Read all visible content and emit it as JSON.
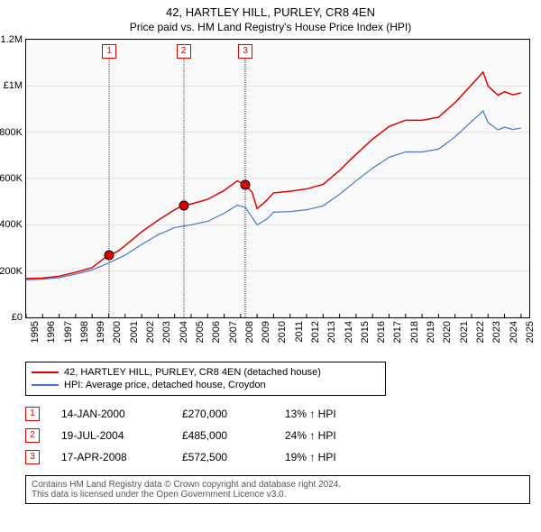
{
  "titles": {
    "line1": "42, HARTLEY HILL, PURLEY, CR8 4EN",
    "line2": "Price paid vs. HM Land Registry's House Price Index (HPI)"
  },
  "chart": {
    "type": "line",
    "background_color": "#fafafa",
    "border_color": "#000000",
    "grid_color": "#e0e0e0",
    "x": {
      "min": 1995,
      "max": 2025.5,
      "ticks": [
        1995,
        1996,
        1997,
        1998,
        1999,
        2000,
        2001,
        2002,
        2003,
        2004,
        2005,
        2006,
        2007,
        2008,
        2009,
        2010,
        2011,
        2012,
        2013,
        2014,
        2015,
        2016,
        2017,
        2018,
        2019,
        2020,
        2021,
        2022,
        2023,
        2024,
        2025
      ]
    },
    "y": {
      "min": 0,
      "max": 1200000,
      "ticks": [
        0,
        200000,
        400000,
        600000,
        800000,
        1000000,
        1200000
      ],
      "tick_labels": [
        "£0",
        "£200K",
        "£400K",
        "£600K",
        "£800K",
        "£1M",
        "£1.2M"
      ]
    },
    "series": [
      {
        "name": "42, HARTLEY HILL, PURLEY, CR8 4EN (detached house)",
        "color": "#e00000",
        "width": 1.5,
        "points": [
          [
            1995,
            168000
          ],
          [
            1996,
            170000
          ],
          [
            1997,
            178000
          ],
          [
            1998,
            195000
          ],
          [
            1999,
            215000
          ],
          [
            2000,
            270000
          ],
          [
            2000.5,
            283000
          ],
          [
            2001,
            310000
          ],
          [
            2002,
            370000
          ],
          [
            2003,
            420000
          ],
          [
            2004,
            465000
          ],
          [
            2004.54,
            485000
          ],
          [
            2005,
            490000
          ],
          [
            2006,
            510000
          ],
          [
            2007,
            548000
          ],
          [
            2007.8,
            590000
          ],
          [
            2008.29,
            572500
          ],
          [
            2008.7,
            540000
          ],
          [
            2009,
            470000
          ],
          [
            2009.5,
            500000
          ],
          [
            2010,
            538000
          ],
          [
            2011,
            545000
          ],
          [
            2012,
            555000
          ],
          [
            2013,
            575000
          ],
          [
            2014,
            635000
          ],
          [
            2015,
            705000
          ],
          [
            2016,
            770000
          ],
          [
            2017,
            825000
          ],
          [
            2018,
            852000
          ],
          [
            2019,
            852000
          ],
          [
            2020,
            865000
          ],
          [
            2021,
            928000
          ],
          [
            2022,
            1005000
          ],
          [
            2022.7,
            1060000
          ],
          [
            2023,
            1000000
          ],
          [
            2023.6,
            960000
          ],
          [
            2024,
            975000
          ],
          [
            2024.5,
            962000
          ],
          [
            2025,
            970000
          ]
        ]
      },
      {
        "name": "HPI: Average price, detached house, Croydon",
        "color": "#4a74c9",
        "width": 1.2,
        "points": [
          [
            1995,
            162000
          ],
          [
            1996,
            165000
          ],
          [
            1997,
            172000
          ],
          [
            1998,
            187000
          ],
          [
            1999,
            205000
          ],
          [
            2000,
            235000
          ],
          [
            2001,
            269000
          ],
          [
            2002,
            315000
          ],
          [
            2003,
            357000
          ],
          [
            2004,
            388000
          ],
          [
            2005,
            400000
          ],
          [
            2006,
            415000
          ],
          [
            2007,
            450000
          ],
          [
            2007.8,
            485000
          ],
          [
            2008.3,
            475000
          ],
          [
            2009,
            400000
          ],
          [
            2009.6,
            425000
          ],
          [
            2010,
            455000
          ],
          [
            2011,
            457000
          ],
          [
            2012,
            465000
          ],
          [
            2013,
            482000
          ],
          [
            2014,
            532000
          ],
          [
            2015,
            590000
          ],
          [
            2016,
            645000
          ],
          [
            2017,
            692000
          ],
          [
            2018,
            715000
          ],
          [
            2019,
            715000
          ],
          [
            2020,
            727000
          ],
          [
            2021,
            780000
          ],
          [
            2022,
            846000
          ],
          [
            2022.7,
            892000
          ],
          [
            2023,
            842000
          ],
          [
            2023.6,
            810000
          ],
          [
            2024,
            822000
          ],
          [
            2024.5,
            812000
          ],
          [
            2025,
            818000
          ]
        ]
      }
    ],
    "sale_markers": [
      {
        "num": "1",
        "x": 2000.04,
        "y": 270000
      },
      {
        "num": "2",
        "x": 2004.54,
        "y": 485000
      },
      {
        "num": "3",
        "x": 2008.29,
        "y": 572500
      }
    ]
  },
  "legend": {
    "items": [
      {
        "color": "#e00000",
        "label": "42, HARTLEY HILL, PURLEY, CR8 4EN (detached house)"
      },
      {
        "color": "#4a74c9",
        "label": "HPI: Average price, detached house, Croydon"
      }
    ]
  },
  "sales": [
    {
      "num": "1",
      "date": "14-JAN-2000",
      "price": "£270,000",
      "hpi": "13% ↑ HPI"
    },
    {
      "num": "2",
      "date": "19-JUL-2004",
      "price": "£485,000",
      "hpi": "24% ↑ HPI"
    },
    {
      "num": "3",
      "date": "17-APR-2008",
      "price": "£572,500",
      "hpi": "19% ↑ HPI"
    }
  ],
  "footer": {
    "line1": "Contains HM Land Registry data © Crown copyright and database right 2024.",
    "line2": "This data is licensed under the Open Government Licence v3.0."
  }
}
